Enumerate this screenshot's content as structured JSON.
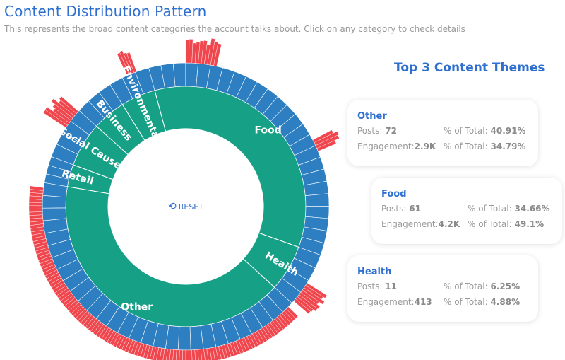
{
  "header": {
    "title": "Content Distribution Pattern",
    "subtitle": "This represents the broad content categories the account talks about. Click on any category to check details"
  },
  "sunburst": {
    "reset_label": "RESET",
    "categories": [
      {
        "label": "Food",
        "share": 0.3466
      },
      {
        "label": "Health",
        "share": 0.0625
      },
      {
        "label": "Other",
        "share": 0.4091
      },
      {
        "label": "Retail",
        "share": 0.03
      },
      {
        "label": "Social Cause",
        "share": 0.06
      },
      {
        "label": "Business",
        "share": 0.045
      },
      {
        "label": "Environmental",
        "share": 0.0468
      }
    ],
    "colors": {
      "inner": "#16a085",
      "middle": "#2d7fc1",
      "outer": "#f0474e"
    }
  },
  "themes": {
    "title": "Top 3 Content Themes",
    "cards": [
      {
        "name": "Other",
        "posts_label": "Posts:",
        "posts": "72",
        "pct_label": "% of Total:",
        "posts_pct": "40.91%",
        "eng_label": "Engagement:",
        "engagement": "2.9K",
        "eng_pct": "34.79%"
      },
      {
        "name": "Food",
        "posts_label": "Posts:",
        "posts": "61",
        "pct_label": "% of Total:",
        "posts_pct": "34.66%",
        "eng_label": "Engagement:",
        "engagement": "4.2K",
        "eng_pct": "49.1%"
      },
      {
        "name": "Health",
        "posts_label": "Posts:",
        "posts": "11",
        "pct_label": "% of Total:",
        "posts_pct": "6.25%",
        "eng_label": "Engagement:",
        "engagement": "413",
        "eng_pct": "4.88%"
      }
    ]
  }
}
